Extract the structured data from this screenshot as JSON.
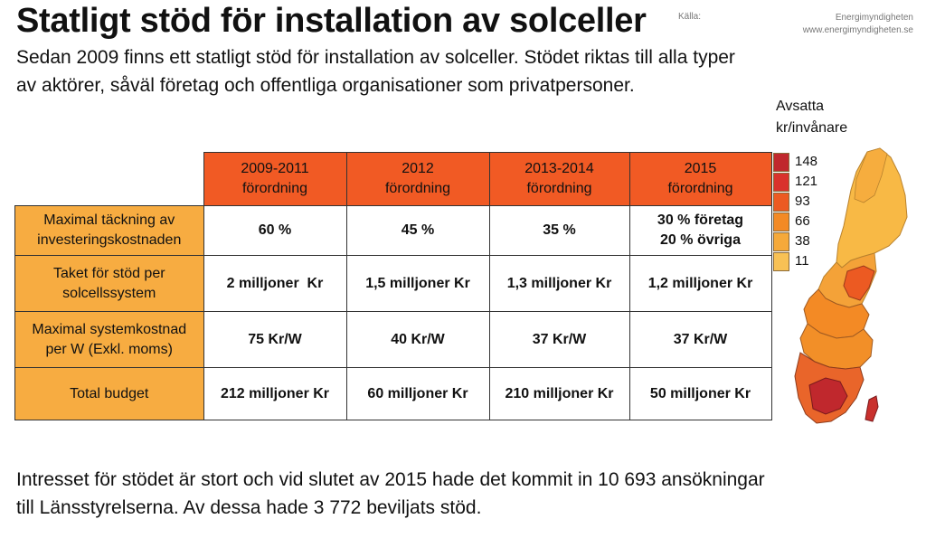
{
  "title": "Statligt stöd för installation av solceller",
  "source": {
    "label": "Källa:",
    "name": "Energimyndigheten",
    "url": "www.energimyndigheten.se"
  },
  "intro": {
    "line1": "Sedan 2009 finns ett statligt stöd för installation av solceller. Stödet riktas till alla typer",
    "line2": "av aktörer, såväl företag och offentliga organisationer som privatpersoner."
  },
  "table": {
    "columns": [
      {
        "line1": "2009-2011",
        "line2": "förordning"
      },
      {
        "line1": "2012",
        "line2": "förordning"
      },
      {
        "line1": "2013-2014",
        "line2": "förordning"
      },
      {
        "line1": "2015",
        "line2": "förordning"
      }
    ],
    "rows": [
      {
        "line1": "Maximal täckning av",
        "line2": "investeringskostnaden",
        "values": [
          "60 %",
          "45 %",
          "35 %",
          "30 % företag\n20 % övriga"
        ]
      },
      {
        "line1": "Taket för stöd per",
        "line2": "solcellssystem",
        "values": [
          "2 milljoner  Kr",
          "1,5 milljoner Kr",
          "1,3 milljoner Kr",
          "1,2 milljoner Kr"
        ]
      },
      {
        "line1": "Maximal systemkostnad",
        "line2": "per W (Exkl. moms)",
        "values": [
          "75 Kr/W",
          "40 Kr/W",
          "37 Kr/W",
          "37 Kr/W"
        ]
      },
      {
        "line1": "Total budget",
        "line2": "",
        "values": [
          "212 milljoner Kr",
          "60 milljoner Kr",
          "210 milljoner Kr",
          "50 milljoner Kr"
        ]
      }
    ]
  },
  "map_legend": {
    "title_line1": "Avsatta",
    "title_line2": "kr/invånare",
    "items": [
      {
        "label": "148",
        "color": "#c0282d"
      },
      {
        "label": "121",
        "color": "#d9322c"
      },
      {
        "label": "93",
        "color": "#ec5a22"
      },
      {
        "label": "66",
        "color": "#f38a25"
      },
      {
        "label": "38",
        "color": "#f5a93a"
      },
      {
        "label": "11",
        "color": "#f8c155"
      }
    ]
  },
  "outro": {
    "line1": "Intresset för stödet är stort och vid slutet av 2015 hade det kommit in 10 693 ansökningar",
    "line2": "till Länsstyrelserna. Av dessa hade 3 772 beviljats stöd."
  }
}
